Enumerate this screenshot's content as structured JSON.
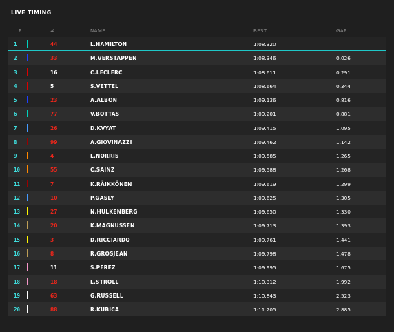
{
  "title": "LIVE TIMING",
  "headers": {
    "p": "P",
    "num": "#",
    "name": "NAME",
    "best": "BEST",
    "gap": "GAP"
  },
  "rows": [
    {
      "pos": "1",
      "num": "44",
      "name": "L.HAMILTON",
      "best": "1:08.320",
      "gap": "",
      "team_color": "#00d2be",
      "num_color": "red"
    },
    {
      "pos": "2",
      "num": "33",
      "name": "M.VERSTAPPEN",
      "best": "1:08.346",
      "gap": "0.026",
      "team_color": "#1e41ff",
      "num_color": "red"
    },
    {
      "pos": "3",
      "num": "16",
      "name": "C.LECLERC",
      "best": "1:08.611",
      "gap": "0.291",
      "team_color": "#dc0000",
      "num_color": "white"
    },
    {
      "pos": "4",
      "num": "5",
      "name": "S.VETTEL",
      "best": "1:08.664",
      "gap": "0.344",
      "team_color": "#dc0000",
      "num_color": "white"
    },
    {
      "pos": "5",
      "num": "23",
      "name": "A.ALBON",
      "best": "1:09.136",
      "gap": "0.816",
      "team_color": "#1e41ff",
      "num_color": "red"
    },
    {
      "pos": "6",
      "num": "77",
      "name": "V.BOTTAS",
      "best": "1:09.201",
      "gap": "0.881",
      "team_color": "#00d2be",
      "num_color": "red"
    },
    {
      "pos": "7",
      "num": "26",
      "name": "D.KVYAT",
      "best": "1:09.415",
      "gap": "1.095",
      "team_color": "#469bff",
      "num_color": "red"
    },
    {
      "pos": "8",
      "num": "99",
      "name": "A.GIOVINAZZI",
      "best": "1:09.462",
      "gap": "1.142",
      "team_color": "#9b0000",
      "num_color": "red"
    },
    {
      "pos": "9",
      "num": "4",
      "name": "L.NORRIS",
      "best": "1:09.585",
      "gap": "1.265",
      "team_color": "#ff8700",
      "num_color": "red"
    },
    {
      "pos": "10",
      "num": "55",
      "name": "C.SAINZ",
      "best": "1:09.588",
      "gap": "1.268",
      "team_color": "#ff8700",
      "num_color": "red"
    },
    {
      "pos": "11",
      "num": "7",
      "name": "K.RÄIKKÖNEN",
      "best": "1:09.619",
      "gap": "1.299",
      "team_color": "#9b0000",
      "num_color": "red"
    },
    {
      "pos": "12",
      "num": "10",
      "name": "P.GASLY",
      "best": "1:09.625",
      "gap": "1.305",
      "team_color": "#469bff",
      "num_color": "red"
    },
    {
      "pos": "13",
      "num": "27",
      "name": "N.HULKENBERG",
      "best": "1:09.650",
      "gap": "1.330",
      "team_color": "#fff500",
      "num_color": "red"
    },
    {
      "pos": "14",
      "num": "20",
      "name": "K.MAGNUSSEN",
      "best": "1:09.713",
      "gap": "1.393",
      "team_color": "#bd9e57",
      "num_color": "red"
    },
    {
      "pos": "15",
      "num": "3",
      "name": "D.RICCIARDO",
      "best": "1:09.761",
      "gap": "1.441",
      "team_color": "#fff500",
      "num_color": "red"
    },
    {
      "pos": "16",
      "num": "8",
      "name": "R.GROSJEAN",
      "best": "1:09.798",
      "gap": "1.478",
      "team_color": "#bd9e57",
      "num_color": "red"
    },
    {
      "pos": "17",
      "num": "11",
      "name": "S.PEREZ",
      "best": "1:09.995",
      "gap": "1.675",
      "team_color": "#f596c8",
      "num_color": "white"
    },
    {
      "pos": "18",
      "num": "18",
      "name": "L.STROLL",
      "best": "1:10.312",
      "gap": "1.992",
      "team_color": "#f596c8",
      "num_color": "red"
    },
    {
      "pos": "19",
      "num": "63",
      "name": "G.RUSSELL",
      "best": "1:10.843",
      "gap": "2.523",
      "team_color": "#ffffff",
      "num_color": "red"
    },
    {
      "pos": "20",
      "num": "88",
      "name": "R.KUBICA",
      "best": "1:11.205",
      "gap": "2.885",
      "team_color": "#ffffff",
      "num_color": "red"
    }
  ]
}
